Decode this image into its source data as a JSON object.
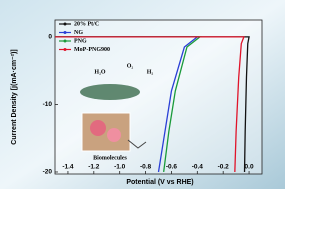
{
  "chart_data": {
    "type": "line",
    "x_label": "Potential (V vs RHE)",
    "y_label": "Current Density [j(mA·cm⁻²)]",
    "xlim": [
      -1.5,
      0.1
    ],
    "ylim": [
      -20.3,
      2.5
    ],
    "xticks": [
      -1.4,
      -1.2,
      {
        "value": -1,
        "label": "-1.0"
      },
      -0.8,
      -0.6,
      -0.4,
      -0.2,
      {
        "value": 0,
        "label": "0.0"
      }
    ],
    "yticks": [
      0,
      -10,
      -20
    ],
    "legend": "upper left",
    "annotations": [
      "H₂O",
      "O₂",
      "H₂",
      "Biomolecules"
    ],
    "series": [
      {
        "name": "20% Pt/C",
        "color": "#111111",
        "x": [
          -1.5,
          -0.5,
          0.0,
          -0.01,
          -0.02,
          -0.03,
          -0.035
        ],
        "values": [
          0,
          0,
          0,
          -1,
          -6,
          -14,
          -20
        ]
      },
      {
        "name": "NG",
        "color": "#2a3fd6",
        "x": [
          -1.5,
          -0.4,
          -0.5,
          -0.6,
          -0.65,
          -0.7
        ],
        "values": [
          0,
          0,
          -1.5,
          -8,
          -14,
          -20
        ]
      },
      {
        "name": "PNG",
        "color": "#1a9a3a",
        "x": [
          -1.5,
          -0.38,
          -0.48,
          -0.57,
          -0.62,
          -0.66
        ],
        "values": [
          0,
          0,
          -1.5,
          -8,
          -14,
          -20
        ]
      },
      {
        "name": "MoP-PNG900",
        "color": "#e0142a",
        "x": [
          -1.5,
          -0.04,
          -0.06,
          -0.08,
          -0.1,
          -0.11
        ],
        "values": [
          0,
          0,
          -1,
          -6,
          -14,
          -20
        ]
      }
    ]
  }
}
